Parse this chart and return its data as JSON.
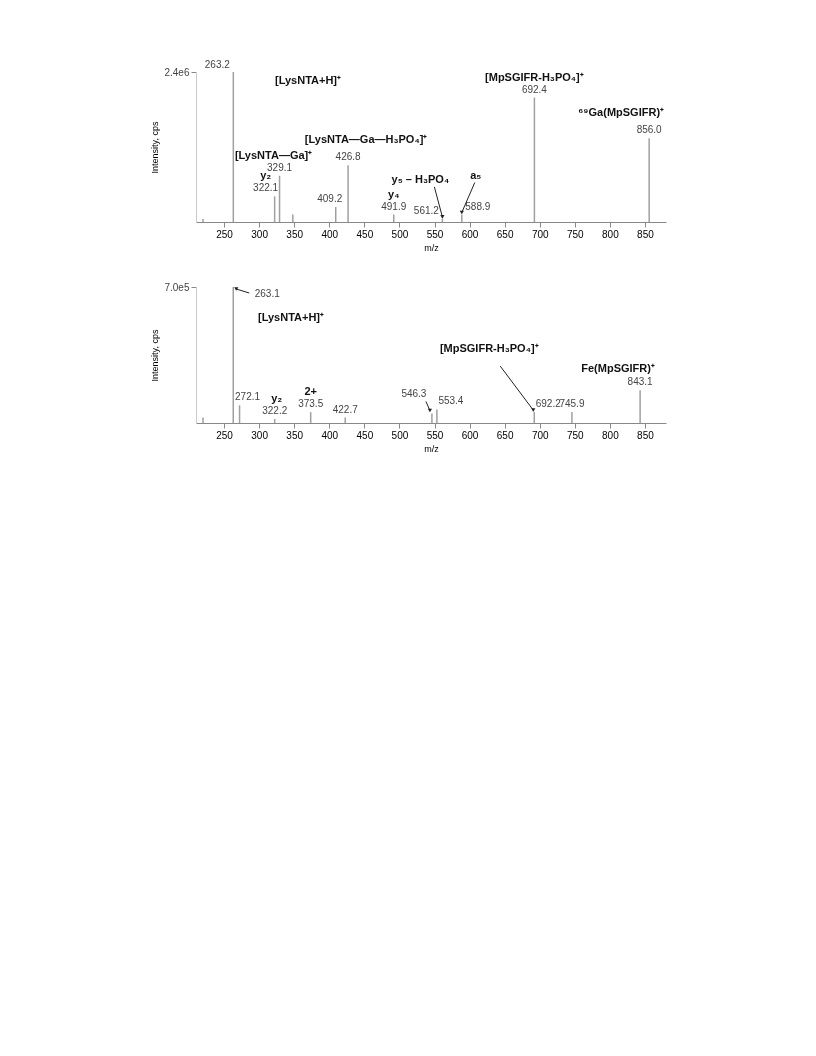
{
  "chart_data": [
    {
      "type": "bar",
      "color": "#a0a0a0",
      "xlabel": "m/z",
      "ylabel": "Intensity, cps",
      "xlim": [
        210,
        880
      ],
      "xticks": [
        250,
        300,
        350,
        400,
        450,
        500,
        550,
        600,
        650,
        700,
        750,
        800,
        850
      ],
      "ylim": [
        0,
        2400000
      ],
      "yticks": [
        {
          "value": 2400000,
          "label": "2.4e6"
        }
      ],
      "grid": false,
      "x": [
        220,
        263.2,
        322.1,
        329.1,
        348,
        409.2,
        426.8,
        491.9,
        561.2,
        588.9,
        692.4,
        856.0
      ],
      "values": [
        50000,
        2400000,
        410000,
        740000,
        120000,
        240000,
        910000,
        120000,
        50000,
        120000,
        1990000,
        1340000
      ],
      "annotations": [
        {
          "text": "263.2",
          "x": 263.2,
          "y": 2400000
        },
        "[LysNTA+H]⁺",
        {
          "text": "322.1",
          "x": 322.1,
          "y": 410000
        },
        {
          "text": "y₂",
          "x": 322.1,
          "y": 410000
        },
        {
          "text": "329.1",
          "x": 329.1,
          "y": 740000
        },
        {
          "text": "[LysNTA—Ga]⁺",
          "x": 329.1,
          "y": 740000
        },
        {
          "text": "409.2",
          "x": 409.2,
          "y": 240000
        },
        {
          "text": "426.8",
          "x": 426.8,
          "y": 910000
        },
        {
          "text": "[LysNTA—Ga—H₃PO₄]⁺",
          "x": 426.8,
          "y": 910000
        },
        {
          "text": "491.9",
          "x": 491.9,
          "y": 120000
        },
        {
          "text": "y₄",
          "x": 491.9,
          "y": 120000
        },
        {
          "text": "561.2",
          "x": 561.2,
          "y": 50000
        },
        {
          "text": "y₅ – H₃PO₄",
          "x": 561.2,
          "y": 50000
        },
        {
          "text": "588.9",
          "x": 588.9,
          "y": 120000
        },
        {
          "text": "a₅",
          "x": 588.9,
          "y": 120000
        },
        {
          "text": "692.4",
          "x": 692.4,
          "y": 1990000
        },
        {
          "text": "[MpSGIFR-H₃PO₄]⁺",
          "x": 692.4,
          "y": 1990000
        },
        {
          "text": "856.0",
          "x": 856.0,
          "y": 1340000
        },
        {
          "text": "⁶⁹Ga(MpSGIFR)⁺",
          "x": 856.0,
          "y": 1340000
        }
      ]
    },
    {
      "type": "bar",
      "color": "#a0a0a0",
      "xlabel": "m/z",
      "ylabel": "Intensity, cps",
      "xlim": [
        210,
        880
      ],
      "xticks": [
        250,
        300,
        350,
        400,
        450,
        500,
        550,
        600,
        650,
        700,
        750,
        800,
        850
      ],
      "ylim": [
        0,
        700000
      ],
      "yticks": [
        {
          "value": 700000,
          "label": "7.0e5"
        }
      ],
      "grid": false,
      "x": [
        220,
        263.1,
        272.1,
        322.2,
        373.5,
        422.7,
        546.3,
        553.4,
        692.2,
        745.9,
        843.1
      ],
      "values": [
        28000,
        700000,
        91000,
        21000,
        56000,
        28000,
        49000,
        70000,
        56000,
        56000,
        168000
      ],
      "annotations": [
        {
          "text": "263.1",
          "x": 263.1,
          "y": 700000
        },
        "[LysNTA+H]⁺",
        {
          "text": "272.1",
          "x": 272.1,
          "y": 91000
        },
        {
          "text": "322.2",
          "x": 322.2,
          "y": 21000
        },
        {
          "text": "y₂",
          "x": 322.2,
          "y": 21000
        },
        {
          "text": "373.5",
          "x": 373.5,
          "y": 56000
        },
        {
          "text": "2+",
          "x": 373.5,
          "y": 56000
        },
        {
          "text": "422.7",
          "x": 422.7,
          "y": 28000
        },
        {
          "text": "546.3",
          "x": 546.3,
          "y": 49000
        },
        {
          "text": "553.4",
          "x": 553.4,
          "y": 70000
        },
        {
          "text": "692.2",
          "x": 692.2,
          "y": 56000
        },
        {
          "text": "[MpSGIFR-H₃PO₄]⁺",
          "x": 692.2,
          "y": 56000
        },
        {
          "text": "745.9",
          "x": 745.9,
          "y": 56000
        },
        {
          "text": "843.1",
          "x": 843.1,
          "y": 168000
        },
        {
          "text": "Fe(MpSGIFR)⁺",
          "x": 843.1,
          "y": 168000
        }
      ]
    }
  ]
}
